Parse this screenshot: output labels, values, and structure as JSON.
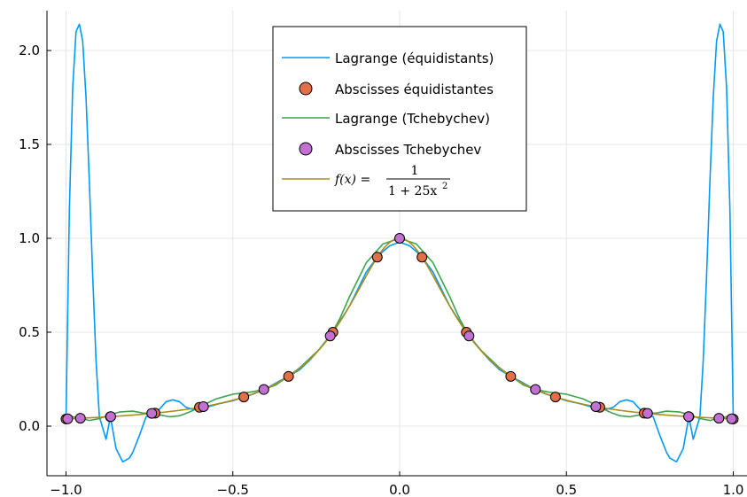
{
  "chart_data": {
    "type": "line",
    "title": "",
    "xlabel": "",
    "ylabel": "",
    "xlim": [
      -1.05,
      1.05
    ],
    "ylim": [
      -0.26,
      2.22
    ],
    "grid": true,
    "legend_position": "top-center",
    "x_ticks": [
      {
        "value": -1.0,
        "label": "−1.0"
      },
      {
        "value": -0.5,
        "label": "−0.5"
      },
      {
        "value": 0.0,
        "label": "0.0"
      },
      {
        "value": 0.5,
        "label": "0.5"
      },
      {
        "value": 1.0,
        "label": "1.0"
      }
    ],
    "y_ticks": [
      {
        "value": 0.0,
        "label": "0.0"
      },
      {
        "value": 0.5,
        "label": "0.5"
      },
      {
        "value": 1.0,
        "label": "1.0"
      },
      {
        "value": 1.5,
        "label": "1.5"
      },
      {
        "value": 2.0,
        "label": "2.0"
      }
    ],
    "series": [
      {
        "name": "Lagrange (équidistants)",
        "kind": "line",
        "color": "#009af9",
        "x": [
          -1.0,
          -0.99,
          -0.98,
          -0.97,
          -0.96,
          -0.95,
          -0.94,
          -0.93,
          -0.92,
          -0.91,
          -0.9,
          -0.88,
          -0.867,
          -0.85,
          -0.83,
          -0.81,
          -0.8,
          -0.78,
          -0.76,
          -0.733,
          -0.72,
          -0.7,
          -0.68,
          -0.66,
          -0.64,
          -0.62,
          -0.6,
          -0.58,
          -0.56,
          -0.54,
          -0.5,
          -0.467,
          -0.44,
          -0.4,
          -0.36,
          -0.333,
          -0.3,
          -0.27,
          -0.25,
          -0.2,
          -0.15,
          -0.1,
          -0.067,
          -0.05,
          -0.03,
          0.0,
          0.03,
          0.05,
          0.067,
          0.1,
          0.15,
          0.2,
          0.25,
          0.27,
          0.3,
          0.333,
          0.36,
          0.4,
          0.44,
          0.467,
          0.5,
          0.54,
          0.56,
          0.58,
          0.6,
          0.62,
          0.64,
          0.66,
          0.68,
          0.7,
          0.72,
          0.733,
          0.76,
          0.78,
          0.8,
          0.81,
          0.83,
          0.85,
          0.867,
          0.88,
          0.9,
          0.91,
          0.92,
          0.93,
          0.94,
          0.95,
          0.96,
          0.97,
          0.98,
          0.99,
          1.0
        ],
        "y": [
          0.04,
          1.15,
          1.8,
          2.1,
          2.14,
          2.05,
          1.75,
          1.3,
          0.8,
          0.35,
          0.05,
          -0.07,
          0.05,
          -0.12,
          -0.19,
          -0.17,
          -0.14,
          -0.05,
          0.05,
          0.067,
          0.09,
          0.13,
          0.14,
          0.13,
          0.1,
          0.09,
          0.1,
          0.1,
          0.11,
          0.12,
          0.135,
          0.155,
          0.17,
          0.2,
          0.24,
          0.265,
          0.3,
          0.35,
          0.39,
          0.5,
          0.64,
          0.82,
          0.9,
          0.93,
          0.96,
          0.98,
          0.96,
          0.93,
          0.9,
          0.82,
          0.64,
          0.5,
          0.39,
          0.35,
          0.3,
          0.265,
          0.24,
          0.2,
          0.17,
          0.155,
          0.135,
          0.12,
          0.11,
          0.1,
          0.1,
          0.09,
          0.1,
          0.13,
          0.14,
          0.13,
          0.09,
          0.067,
          0.05,
          -0.05,
          -0.14,
          -0.17,
          -0.19,
          -0.12,
          0.05,
          -0.07,
          0.05,
          0.35,
          0.8,
          1.3,
          1.75,
          2.05,
          2.14,
          2.1,
          1.8,
          1.15,
          0.04
        ]
      },
      {
        "name": "Abscisses équidistantes",
        "kind": "scatter",
        "color": "#e26f46",
        "x": [
          -1.0,
          -0.867,
          -0.733,
          -0.6,
          -0.467,
          -0.333,
          -0.2,
          -0.067,
          0.067,
          0.2,
          0.333,
          0.467,
          0.6,
          0.733,
          0.867,
          1.0
        ],
        "y": [
          0.038,
          0.05,
          0.069,
          0.1,
          0.155,
          0.265,
          0.5,
          0.9,
          0.9,
          0.5,
          0.265,
          0.155,
          0.1,
          0.069,
          0.05,
          0.038
        ]
      },
      {
        "name": "Lagrange (Tchebychev)",
        "kind": "line",
        "color": "#3da44d",
        "x": [
          -1.0,
          -0.98,
          -0.957,
          -0.93,
          -0.9,
          -0.87,
          -0.84,
          -0.8,
          -0.77,
          -0.743,
          -0.72,
          -0.69,
          -0.66,
          -0.63,
          -0.6,
          -0.58,
          -0.55,
          -0.5,
          -0.45,
          -0.406,
          -0.37,
          -0.33,
          -0.3,
          -0.27,
          -0.24,
          -0.208,
          -0.18,
          -0.15,
          -0.1,
          -0.05,
          0.0,
          0.05,
          0.1,
          0.15,
          0.18,
          0.208,
          0.24,
          0.27,
          0.3,
          0.33,
          0.37,
          0.406,
          0.45,
          0.5,
          0.55,
          0.58,
          0.6,
          0.63,
          0.66,
          0.69,
          0.72,
          0.743,
          0.77,
          0.8,
          0.84,
          0.87,
          0.9,
          0.93,
          0.957,
          0.98,
          1.0
        ],
        "y": [
          0.038,
          0.05,
          0.042,
          0.03,
          0.04,
          0.06,
          0.075,
          0.08,
          0.07,
          0.068,
          0.06,
          0.05,
          0.055,
          0.075,
          0.1,
          0.12,
          0.145,
          0.17,
          0.18,
          0.195,
          0.22,
          0.27,
          0.31,
          0.36,
          0.41,
          0.48,
          0.57,
          0.69,
          0.87,
          0.97,
          1.0,
          0.97,
          0.87,
          0.69,
          0.57,
          0.48,
          0.41,
          0.36,
          0.31,
          0.27,
          0.22,
          0.195,
          0.18,
          0.17,
          0.145,
          0.12,
          0.1,
          0.075,
          0.055,
          0.05,
          0.06,
          0.068,
          0.07,
          0.08,
          0.075,
          0.06,
          0.04,
          0.03,
          0.042,
          0.05,
          0.038
        ]
      },
      {
        "name": "Abscisses Tchebychev",
        "kind": "scatter",
        "color": "#c271d2",
        "x": [
          -0.995,
          -0.957,
          -0.866,
          -0.743,
          -0.588,
          -0.407,
          -0.208,
          0.0,
          0.208,
          0.407,
          0.588,
          0.743,
          0.866,
          0.957,
          0.995
        ],
        "y": [
          0.039,
          0.042,
          0.051,
          0.068,
          0.104,
          0.195,
          0.48,
          1.0,
          0.48,
          0.195,
          0.104,
          0.068,
          0.051,
          0.042,
          0.039
        ]
      },
      {
        "name": "f(x) = 1 / (1 + 25x²)",
        "kind": "function",
        "color": "#ac8d18",
        "formula": "1/(1+25x^2)",
        "x_range": [
          -1.0,
          1.0
        ]
      }
    ]
  },
  "legend": {
    "items": [
      {
        "label": "Lagrange (équidistants)",
        "symbol": "line",
        "color": "#009af9"
      },
      {
        "label": "Abscisses équidistantes",
        "symbol": "marker",
        "color": "#e26f46"
      },
      {
        "label": "Lagrange (Tchebychev)",
        "symbol": "line",
        "color": "#3da44d"
      },
      {
        "label": "Abscisses Tchebychev",
        "symbol": "marker",
        "color": "#c271d2"
      }
    ],
    "formula": {
      "lhs": "f(x) =",
      "numerator": "1",
      "denominator": "1 + 25x",
      "exponent": "2",
      "color": "#ac8d18"
    }
  }
}
